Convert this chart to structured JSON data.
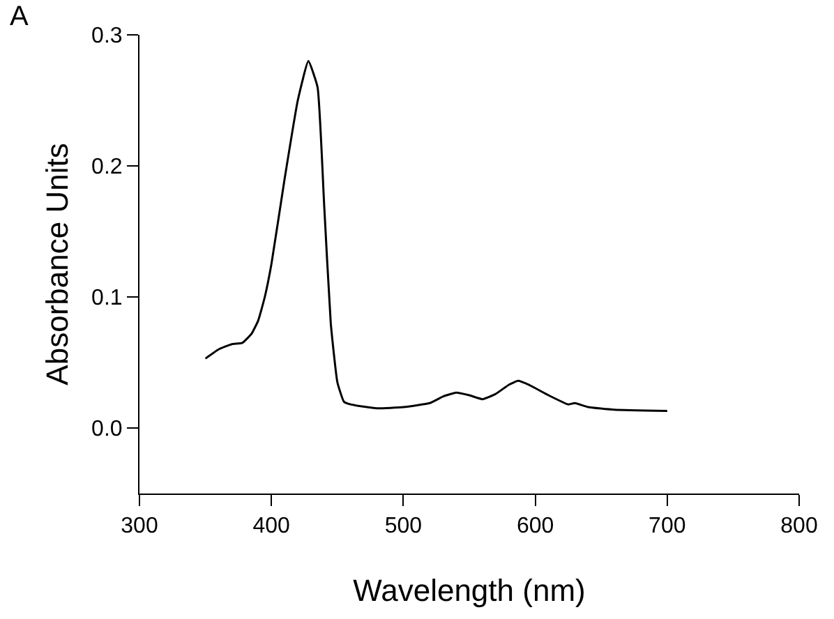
{
  "chart_data": {
    "type": "line",
    "xlabel": "Wavelength (nm)",
    "ylabel": "Absorbance Units",
    "annotations": [
      "A"
    ],
    "x": [
      350,
      360,
      370,
      378,
      385,
      390,
      395,
      400,
      410,
      420,
      428,
      435,
      440,
      445,
      450,
      455,
      460,
      480,
      500,
      520,
      530,
      540,
      550,
      560,
      570,
      580,
      587,
      595,
      610,
      625,
      630,
      640,
      660,
      700
    ],
    "series": [
      {
        "color": "#000000",
        "values": [
          0.053,
          0.06,
          0.064,
          0.065,
          0.072,
          0.082,
          0.1,
          0.125,
          0.19,
          0.25,
          0.28,
          0.26,
          0.17,
          0.08,
          0.035,
          0.02,
          0.018,
          0.015,
          0.016,
          0.019,
          0.024,
          0.027,
          0.025,
          0.022,
          0.026,
          0.033,
          0.036,
          0.033,
          0.025,
          0.018,
          0.019,
          0.016,
          0.014,
          0.013
        ]
      }
    ],
    "xlim": [
      300,
      800
    ],
    "xticks": [
      300,
      400,
      500,
      600,
      700,
      800
    ],
    "ylim": [
      -0.05,
      0.3
    ],
    "yticks": [
      {
        "value": 0,
        "label": "0.0"
      },
      {
        "value": 0.1,
        "label": "0.1"
      },
      {
        "value": 0.2,
        "label": "0.2"
      },
      {
        "value": 0.3,
        "label": "0.3"
      }
    ],
    "legend": false,
    "marker": "none",
    "line_style": "solid"
  }
}
